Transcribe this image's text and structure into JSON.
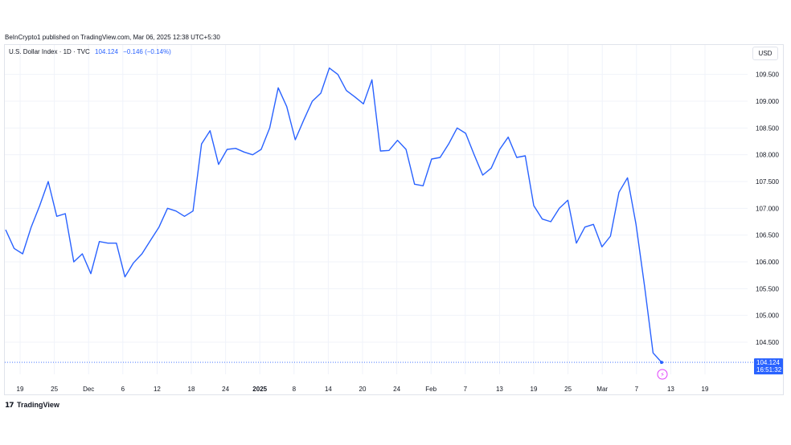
{
  "header": {
    "published": "BeInCrypto1 published on TradingView.com, Mar 06, 2025 12:38 UTC+5:30"
  },
  "legend": {
    "symbol": "U.S. Dollar Index · 1D · TVC",
    "price": "104.124",
    "change": "−0.146 (−0.14%)"
  },
  "currency": "USD",
  "last_price": {
    "value": "104.124",
    "countdown": "16:51:32"
  },
  "footer": {
    "brand": "TradingView",
    "icon": "tradingview-logo-icon"
  },
  "colors": {
    "line": "#2962ff",
    "grid": "#f0f3fa",
    "text": "#131722",
    "event": "#e040fb"
  },
  "chart_data": {
    "type": "line",
    "series": [
      {
        "values": [
          106.6,
          106.25,
          106.15,
          106.65,
          107.05,
          107.5,
          106.85,
          106.9,
          106.0,
          106.15,
          105.78,
          106.38,
          106.35,
          106.35,
          105.72,
          105.98,
          106.15,
          106.4,
          106.65,
          107.0,
          106.95,
          106.85,
          106.95,
          108.2,
          108.45,
          107.82,
          108.1,
          108.12,
          108.05,
          108.0,
          108.1,
          108.5,
          109.25,
          108.9,
          108.28,
          108.65,
          109.0,
          109.15,
          109.62,
          109.5,
          109.2,
          109.08,
          108.95,
          109.4,
          108.07,
          108.08,
          108.27,
          108.1,
          107.45,
          107.42,
          107.92,
          107.95,
          108.2,
          108.5,
          108.4,
          108.0,
          107.62,
          107.75,
          108.1,
          108.33,
          107.95,
          107.98,
          107.05,
          106.8,
          106.75,
          107.0,
          107.15,
          106.35,
          106.65,
          106.7,
          106.28,
          106.48,
          107.3,
          107.57,
          106.7,
          105.55,
          104.3,
          104.124
        ],
        "x_start_index": 0
      }
    ],
    "y_axis": {
      "ticks": [
        "104.500",
        "105.000",
        "105.500",
        "106.000",
        "106.500",
        "107.000",
        "107.500",
        "108.000",
        "108.500",
        "109.000",
        "109.500"
      ],
      "range": [
        104.05,
        110.05
      ],
      "position": "right"
    },
    "x_axis": {
      "labels": [
        {
          "text": "19",
          "bold": false
        },
        {
          "text": "25",
          "bold": false
        },
        {
          "text": "Dec",
          "bold": false
        },
        {
          "text": "6",
          "bold": false
        },
        {
          "text": "12",
          "bold": false
        },
        {
          "text": "18",
          "bold": false
        },
        {
          "text": "24",
          "bold": false
        },
        {
          "text": "2025",
          "bold": true
        },
        {
          "text": "8",
          "bold": false
        },
        {
          "text": "14",
          "bold": false
        },
        {
          "text": "20",
          "bold": false
        },
        {
          "text": "24",
          "bold": false
        },
        {
          "text": "Feb",
          "bold": false
        },
        {
          "text": "7",
          "bold": false
        },
        {
          "text": "13",
          "bold": false
        },
        {
          "text": "19",
          "bold": false
        },
        {
          "text": "25",
          "bold": false
        },
        {
          "text": "Mar",
          "bold": false
        },
        {
          "text": "7",
          "bold": false
        },
        {
          "text": "13",
          "bold": false
        },
        {
          "text": "19",
          "bold": false
        }
      ]
    },
    "grid": true,
    "legend": "top-left"
  }
}
